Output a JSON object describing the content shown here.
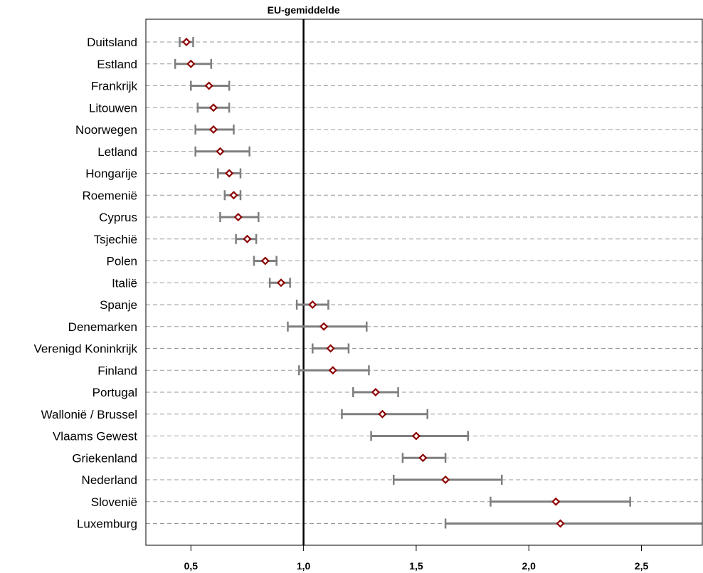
{
  "chart_data": {
    "type": "scatter",
    "orientation": "horizontal",
    "title": "",
    "xlabel": "",
    "ylabel": "",
    "xlim": [
      0.3,
      2.77
    ],
    "x_ticks": [
      0.5,
      1.0,
      1.5,
      2.0,
      2.5
    ],
    "x_tick_labels": [
      "0,5",
      "1,0",
      "1,5",
      "2,0",
      "2,5"
    ],
    "reference_line": {
      "x": 1.0,
      "label": "EU-gemiddelde"
    },
    "grid": "horizontal dashed",
    "categories": [
      "Duitsland",
      "Estland",
      "Frankrijk",
      "Litouwen",
      "Noorwegen",
      "Letland",
      "Hongarije",
      "Roemenië",
      "Cyprus",
      "Tsjechië",
      "Polen",
      "Italië",
      "Spanje",
      "Denemarken",
      "Verenigd Koninkrijk",
      "Finland",
      "Portugal",
      "Wallonië / Brussel",
      "Vlaams Gewest",
      "Griekenland",
      "Nederland",
      "Slovenië",
      "Luxemburg"
    ],
    "values": [
      0.48,
      0.5,
      0.58,
      0.6,
      0.6,
      0.63,
      0.67,
      0.69,
      0.71,
      0.75,
      0.83,
      0.9,
      1.04,
      1.09,
      1.12,
      1.13,
      1.32,
      1.35,
      1.5,
      1.53,
      1.63,
      2.12,
      2.14
    ],
    "lower": [
      0.45,
      0.43,
      0.5,
      0.53,
      0.52,
      0.52,
      0.62,
      0.65,
      0.63,
      0.7,
      0.78,
      0.85,
      0.97,
      0.93,
      1.04,
      0.98,
      1.22,
      1.17,
      1.3,
      1.44,
      1.4,
      1.83,
      1.63
    ],
    "upper": [
      0.51,
      0.59,
      0.67,
      0.67,
      0.69,
      0.76,
      0.72,
      0.72,
      0.8,
      0.79,
      0.88,
      0.94,
      1.11,
      1.28,
      1.2,
      1.29,
      1.42,
      1.55,
      1.73,
      1.63,
      1.88,
      2.45,
      2.77
    ],
    "colors": {
      "marker": "#8b0000",
      "errorbar": "#7f7f7f",
      "grid": "#999999",
      "reference": "#000000"
    }
  }
}
